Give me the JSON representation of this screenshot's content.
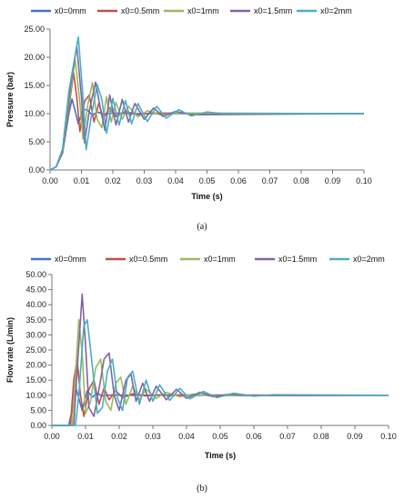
{
  "chart_data": [
    {
      "type": "line",
      "caption": "(a)",
      "xlabel": "Time (s)",
      "ylabel": "Pressure (bar)",
      "xlim": [
        0,
        0.1
      ],
      "ylim": [
        0,
        25
      ],
      "xticks": [
        "0.00",
        "0.01",
        "0.02",
        "0.03",
        "0.04",
        "0.05",
        "0.06",
        "0.07",
        "0.08",
        "0.09",
        "0.10"
      ],
      "yticks": [
        "0.00",
        "5.00",
        "10.00",
        "15.00",
        "20.00",
        "25.00"
      ],
      "grid": false,
      "legend_position": "top",
      "series": [
        {
          "name": "x0=0mm",
          "color": "#4472C4",
          "values": [
            [
              0,
              0
            ],
            [
              0.002,
              0.6
            ],
            [
              0.004,
              3
            ],
            [
              0.006,
              10
            ],
            [
              0.007,
              12.6
            ],
            [
              0.008,
              10.5
            ],
            [
              0.009,
              8.2
            ],
            [
              0.0105,
              10.8
            ],
            [
              0.012,
              10.6
            ],
            [
              0.0135,
              9.7
            ],
            [
              0.015,
              10.3
            ],
            [
              0.017,
              9.9
            ],
            [
              0.02,
              10.1
            ],
            [
              0.025,
              10
            ],
            [
              0.1,
              10
            ]
          ]
        },
        {
          "name": "x0=0.5mm",
          "color": "#C0504D",
          "values": [
            [
              0,
              0
            ],
            [
              0.002,
              0.6
            ],
            [
              0.004,
              3.2
            ],
            [
              0.006,
              11
            ],
            [
              0.0075,
              17.3
            ],
            [
              0.0085,
              13
            ],
            [
              0.0095,
              6.8
            ],
            [
              0.011,
              12.2
            ],
            [
              0.0125,
              13.3
            ],
            [
              0.014,
              8.5
            ],
            [
              0.0155,
              11.8
            ],
            [
              0.017,
              9.2
            ],
            [
              0.019,
              11
            ],
            [
              0.021,
              9.5
            ],
            [
              0.024,
              10.4
            ],
            [
              0.028,
              9.8
            ],
            [
              0.032,
              10.1
            ],
            [
              0.1,
              10
            ]
          ]
        },
        {
          "name": "x0=1mm",
          "color": "#9BBB59",
          "values": [
            [
              0,
              0
            ],
            [
              0.002,
              0.6
            ],
            [
              0.004,
              3.4
            ],
            [
              0.006,
              12
            ],
            [
              0.008,
              19.6
            ],
            [
              0.0095,
              12
            ],
            [
              0.0105,
              5.5
            ],
            [
              0.012,
              11.5
            ],
            [
              0.0135,
              15.5
            ],
            [
              0.015,
              9
            ],
            [
              0.0165,
              7.5
            ],
            [
              0.018,
              13
            ],
            [
              0.0195,
              8.5
            ],
            [
              0.021,
              12
            ],
            [
              0.023,
              9
            ],
            [
              0.025,
              11.3
            ],
            [
              0.028,
              9.4
            ],
            [
              0.031,
              10.5
            ],
            [
              0.035,
              9.8
            ],
            [
              0.04,
              10.1
            ],
            [
              0.1,
              10
            ]
          ]
        },
        {
          "name": "x0=1.5mm",
          "color": "#8064A2",
          "values": [
            [
              0,
              0
            ],
            [
              0.002,
              0.6
            ],
            [
              0.004,
              3.6
            ],
            [
              0.006,
              13
            ],
            [
              0.0085,
              22
            ],
            [
              0.01,
              13
            ],
            [
              0.011,
              4.8
            ],
            [
              0.0125,
              10.5
            ],
            [
              0.0145,
              15.6
            ],
            [
              0.016,
              11
            ],
            [
              0.0175,
              7
            ],
            [
              0.019,
              13.3
            ],
            [
              0.021,
              8
            ],
            [
              0.023,
              12.5
            ],
            [
              0.025,
              8.5
            ],
            [
              0.027,
              11.8
            ],
            [
              0.03,
              9
            ],
            [
              0.033,
              11
            ],
            [
              0.036,
              9.5
            ],
            [
              0.04,
              10.4
            ],
            [
              0.045,
              9.8
            ],
            [
              0.1,
              10
            ]
          ]
        },
        {
          "name": "x0=2mm",
          "color": "#4BACC6",
          "values": [
            [
              0,
              0
            ],
            [
              0.002,
              0.6
            ],
            [
              0.004,
              3.8
            ],
            [
              0.006,
              14
            ],
            [
              0.009,
              23.6
            ],
            [
              0.0105,
              13
            ],
            [
              0.0115,
              3.6
            ],
            [
              0.013,
              9
            ],
            [
              0.015,
              15.2
            ],
            [
              0.0165,
              12.5
            ],
            [
              0.018,
              6.5
            ],
            [
              0.02,
              12.7
            ],
            [
              0.022,
              8
            ],
            [
              0.024,
              12.3
            ],
            [
              0.026,
              8.2
            ],
            [
              0.028,
              11.8
            ],
            [
              0.031,
              8.6
            ],
            [
              0.034,
              11.3
            ],
            [
              0.037,
              9.2
            ],
            [
              0.041,
              10.7
            ],
            [
              0.045,
              9.6
            ],
            [
              0.05,
              10.3
            ],
            [
              0.055,
              10
            ],
            [
              0.1,
              10
            ]
          ]
        }
      ]
    },
    {
      "type": "line",
      "caption": "(b)",
      "xlabel": "Time (s)",
      "ylabel": "Flow rate (L/min)",
      "xlim": [
        0,
        0.1
      ],
      "ylim": [
        0,
        50
      ],
      "xticks": [
        "0.00",
        "0.01",
        "0.02",
        "0.03",
        "0.04",
        "0.05",
        "0.06",
        "0.07",
        "0.08",
        "0.09",
        "0.10"
      ],
      "yticks": [
        "0.00",
        "5.00",
        "10.00",
        "15.00",
        "20.00",
        "25.00",
        "30.00",
        "35.00",
        "40.00",
        "45.00",
        "50.00"
      ],
      "grid": false,
      "legend_position": "top",
      "series": [
        {
          "name": "x0=0mm",
          "color": "#4472C4",
          "values": [
            [
              0,
              0
            ],
            [
              0.005,
              0
            ],
            [
              0.006,
              5
            ],
            [
              0.007,
              13
            ],
            [
              0.008,
              9
            ],
            [
              0.009,
              5
            ],
            [
              0.0105,
              11.5
            ],
            [
              0.012,
              9.4
            ],
            [
              0.0135,
              10.6
            ],
            [
              0.015,
              9.8
            ],
            [
              0.018,
              10.1
            ],
            [
              0.022,
              10
            ],
            [
              0.1,
              10
            ]
          ]
        },
        {
          "name": "x0=0.5mm",
          "color": "#C0504D",
          "values": [
            [
              0,
              0
            ],
            [
              0.0055,
              0
            ],
            [
              0.0065,
              15
            ],
            [
              0.0075,
              22
            ],
            [
              0.0085,
              10
            ],
            [
              0.0095,
              3
            ],
            [
              0.011,
              12
            ],
            [
              0.0125,
              15
            ],
            [
              0.014,
              7
            ],
            [
              0.0155,
              12.5
            ],
            [
              0.017,
              8.5
            ],
            [
              0.019,
              11.5
            ],
            [
              0.021,
              9.2
            ],
            [
              0.024,
              10.5
            ],
            [
              0.028,
              9.8
            ],
            [
              0.032,
              10.1
            ],
            [
              0.1,
              10
            ]
          ]
        },
        {
          "name": "x0=1mm",
          "color": "#9BBB59",
          "values": [
            [
              0,
              0
            ],
            [
              0.006,
              0
            ],
            [
              0.007,
              16
            ],
            [
              0.008,
              35
            ],
            [
              0.009,
              24
            ],
            [
              0.01,
              4
            ],
            [
              0.0115,
              8
            ],
            [
              0.013,
              19
            ],
            [
              0.0145,
              22
            ],
            [
              0.016,
              8
            ],
            [
              0.0175,
              5
            ],
            [
              0.019,
              14
            ],
            [
              0.0205,
              16
            ],
            [
              0.022,
              7
            ],
            [
              0.024,
              13
            ],
            [
              0.026,
              8.5
            ],
            [
              0.028,
              12
            ],
            [
              0.031,
              9
            ],
            [
              0.034,
              11
            ],
            [
              0.038,
              9.5
            ],
            [
              0.042,
              10.4
            ],
            [
              0.047,
              9.8
            ],
            [
              0.1,
              10
            ]
          ]
        },
        {
          "name": "x0=1.5mm",
          "color": "#8064A2",
          "values": [
            [
              0,
              0
            ],
            [
              0.0065,
              0
            ],
            [
              0.0075,
              18
            ],
            [
              0.009,
              43.5
            ],
            [
              0.01,
              27
            ],
            [
              0.011,
              6
            ],
            [
              0.0125,
              3
            ],
            [
              0.014,
              12
            ],
            [
              0.0155,
              22
            ],
            [
              0.017,
              24
            ],
            [
              0.0185,
              10
            ],
            [
              0.02,
              5
            ],
            [
              0.022,
              15
            ],
            [
              0.0235,
              17
            ],
            [
              0.025,
              8
            ],
            [
              0.027,
              14
            ],
            [
              0.029,
              8
            ],
            [
              0.031,
              13
            ],
            [
              0.034,
              8.5
            ],
            [
              0.037,
              12
            ],
            [
              0.04,
              9
            ],
            [
              0.044,
              11
            ],
            [
              0.048,
              9.5
            ],
            [
              0.053,
              10.4
            ],
            [
              0.058,
              9.9
            ],
            [
              0.1,
              10
            ]
          ]
        },
        {
          "name": "x0=2mm",
          "color": "#4BACC6",
          "values": [
            [
              0,
              0
            ],
            [
              0.007,
              0
            ],
            [
              0.008,
              10
            ],
            [
              0.0095,
              33
            ],
            [
              0.0105,
              35
            ],
            [
              0.012,
              20
            ],
            [
              0.0135,
              4
            ],
            [
              0.015,
              6
            ],
            [
              0.0165,
              18
            ],
            [
              0.018,
              22
            ],
            [
              0.0195,
              9
            ],
            [
              0.021,
              5
            ],
            [
              0.0225,
              16
            ],
            [
              0.024,
              18
            ],
            [
              0.026,
              7
            ],
            [
              0.028,
              15
            ],
            [
              0.03,
              8
            ],
            [
              0.032,
              13.5
            ],
            [
              0.035,
              8.3
            ],
            [
              0.038,
              12.3
            ],
            [
              0.041,
              8.8
            ],
            [
              0.045,
              11.3
            ],
            [
              0.049,
              9.2
            ],
            [
              0.054,
              10.7
            ],
            [
              0.06,
              9.7
            ],
            [
              0.066,
              10.2
            ],
            [
              0.1,
              10
            ]
          ]
        }
      ]
    }
  ]
}
